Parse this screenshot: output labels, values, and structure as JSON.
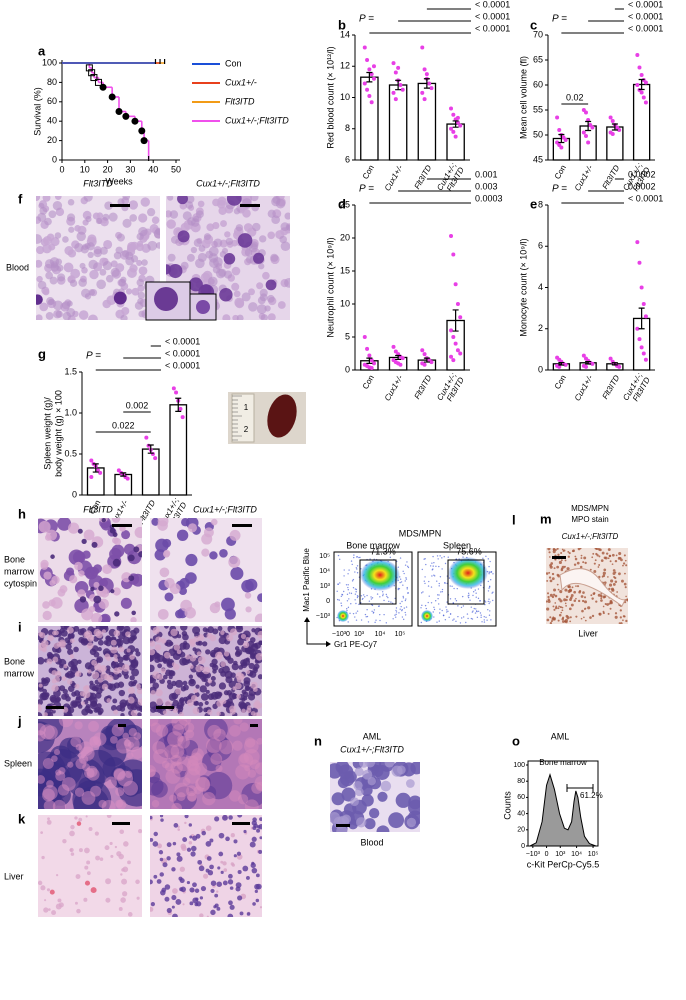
{
  "chart_data": [
    {
      "panel": "a",
      "type": "line",
      "step": true,
      "ylabel": "Survival (%)",
      "xlabel": "Weeks",
      "xlim": [
        0,
        50
      ],
      "xticks": [
        0,
        10,
        20,
        30,
        40,
        50
      ],
      "ylim": [
        0,
        100
      ],
      "yticks": [
        0,
        20,
        40,
        60,
        80,
        100
      ],
      "series": [
        {
          "name": "Con",
          "color": "#1a4fd8",
          "x": [
            0,
            41
          ],
          "values": [
            100,
            100
          ]
        },
        {
          "name": "Cux1+/-",
          "color": "#e8401c",
          "x": [
            0,
            43
          ],
          "values": [
            100,
            100
          ]
        },
        {
          "name": "Flt3ITD",
          "color": "#f29b16",
          "x": [
            0,
            45
          ],
          "values": [
            100,
            100
          ]
        },
        {
          "name": "Cux1+/-;Flt3ITD",
          "color": "#f050ec",
          "x": [
            0,
            12,
            13,
            14,
            16,
            18,
            22,
            25,
            28,
            32,
            35,
            36,
            38
          ],
          "values": [
            100,
            95,
            90,
            85,
            80,
            75,
            65,
            50,
            45,
            40,
            30,
            20,
            0
          ]
        }
      ]
    },
    {
      "panel": "b",
      "type": "bar",
      "ylabel": "Red blood count (× 10¹²/l)",
      "ylim": [
        6,
        14
      ],
      "yticks": [
        6,
        8,
        10,
        12,
        14
      ],
      "categories": [
        "Con",
        "Cux1+/-",
        "Flt3ITD",
        "Cux1+/-;Flt3ITD"
      ],
      "color": "#000000",
      "point_color": "#e83fe6",
      "values": [
        11.3,
        10.8,
        10.9,
        8.3
      ],
      "errors": [
        0.3,
        0.3,
        0.3,
        0.2
      ],
      "points": [
        [
          13.2,
          12.4,
          11.8,
          11.5,
          11.2,
          10.9,
          10.5,
          10.1,
          9.7,
          12.0
        ],
        [
          12.2,
          11.6,
          11.1,
          10.8,
          10.5,
          10.3,
          9.9,
          11.9
        ],
        [
          13.2,
          11.8,
          11.2,
          10.9,
          10.6,
          10.3,
          9.9,
          11.5
        ],
        [
          9.3,
          8.9,
          8.6,
          8.4,
          8.2,
          8.0,
          7.8,
          7.5,
          8.7
        ]
      ],
      "p_label": "P =",
      "comparisons": [
        "< 0.0001",
        "< 0.0001",
        "< 0.0001"
      ]
    },
    {
      "panel": "c",
      "type": "bar",
      "ylabel": "Mean cell volume (fl)",
      "ylim": [
        45,
        70
      ],
      "yticks": [
        45,
        50,
        55,
        60,
        65,
        70
      ],
      "categories": [
        "Con",
        "Cux1+/-",
        "Flt3ITD",
        "Cux1+/-;Flt3ITD"
      ],
      "color": "#000000",
      "point_color": "#e83fe6",
      "values": [
        49.3,
        51.8,
        51.6,
        60.1
      ],
      "errors": [
        0.8,
        0.9,
        0.6,
        1.0
      ],
      "points": [
        [
          53.5,
          51,
          50,
          49.5,
          49,
          48.5,
          48,
          47.5
        ],
        [
          55,
          54.5,
          53,
          52,
          51.5,
          50.5,
          49.8,
          48.5
        ],
        [
          53.5,
          52.8,
          52,
          51.5,
          51,
          50.5,
          50.2
        ],
        [
          66,
          63.5,
          62,
          61,
          60.5,
          60,
          59,
          58.5,
          57.5,
          56.5
        ]
      ],
      "p_label": "P =",
      "comparisons": [
        "< 0.0001",
        "< 0.0001",
        "< 0.0001",
        "0.02"
      ]
    },
    {
      "panel": "d",
      "type": "bar",
      "ylabel": "Neutrophil count (× 10⁹/l)",
      "ylim": [
        0,
        25
      ],
      "yticks": [
        0,
        5,
        10,
        15,
        20,
        25
      ],
      "categories": [
        "Con",
        "Cux1+/-",
        "Flt3ITD",
        "Cux1+/-;Flt3ITD"
      ],
      "color": "#000000",
      "point_color": "#e83fe6",
      "values": [
        1.4,
        1.9,
        1.5,
        7.5
      ],
      "errors": [
        0.4,
        0.3,
        0.3,
        1.6
      ],
      "points": [
        [
          5,
          3.2,
          2.2,
          1.5,
          1.0,
          0.8,
          0.6,
          0.4,
          0.3
        ],
        [
          3.5,
          2.8,
          2.4,
          2.0,
          1.8,
          1.5,
          1.2,
          1.0,
          0.8
        ],
        [
          3,
          2.4,
          1.8,
          1.5,
          1.2,
          1.0,
          0.8
        ],
        [
          20.3,
          17.5,
          13,
          10,
          8,
          6,
          5,
          4,
          3,
          2.5,
          2,
          1.5
        ]
      ],
      "p_label": "P =",
      "comparisons": [
        "0.001",
        "0.003",
        "0.0003"
      ]
    },
    {
      "panel": "e",
      "type": "bar",
      "ylabel": "Monocyte count (× 10⁹/l)",
      "ylim": [
        0,
        8
      ],
      "yticks": [
        0,
        2,
        4,
        6,
        8
      ],
      "categories": [
        "Con",
        "Cux1+/-",
        "Flt3ITD",
        "Cux1+/-;Flt3ITD"
      ],
      "color": "#000000",
      "point_color": "#e83fe6",
      "values": [
        0.3,
        0.35,
        0.3,
        2.5
      ],
      "errors": [
        0.06,
        0.06,
        0.05,
        0.5
      ],
      "points": [
        [
          0.6,
          0.5,
          0.4,
          0.3,
          0.25,
          0.2,
          0.15
        ],
        [
          0.7,
          0.55,
          0.45,
          0.35,
          0.3,
          0.2,
          0.15
        ],
        [
          0.55,
          0.4,
          0.3,
          0.2,
          0.15
        ],
        [
          6.2,
          5.2,
          4.0,
          3.2,
          2.6,
          2.0,
          1.5,
          1.1,
          0.8,
          0.5
        ]
      ],
      "p_label": "P =",
      "comparisons": [
        "0.0002",
        "0.0002",
        "< 0.0001"
      ]
    },
    {
      "panel": "g",
      "type": "bar",
      "ylabel": "Spleen weight (g)/",
      "ylabel2": "body weight (g) × 100",
      "ylim": [
        0,
        1.5
      ],
      "yticks": [
        0,
        0.5,
        {
          "value": 1,
          "label": "1.0"
        },
        1.5
      ],
      "categories": [
        "Con",
        "Cux1+/-",
        "Flt3ITD",
        "Cux1+/-;Flt3ITD"
      ],
      "color": "#000000",
      "point_color": "#e83fe6",
      "values": [
        0.33,
        0.25,
        0.56,
        1.1
      ],
      "errors": [
        0.05,
        0.02,
        0.05,
        0.08
      ],
      "points": [
        [
          0.42,
          0.38,
          0.35,
          0.3,
          0.27,
          0.22
        ],
        [
          0.3,
          0.27,
          0.25,
          0.22,
          0.2
        ],
        [
          0.7,
          0.6,
          0.55,
          0.5,
          0.45
        ],
        [
          1.3,
          1.25,
          1.15,
          1.05,
          0.95
        ]
      ],
      "p_label": "P =",
      "comparisons": [
        "< 0.0001",
        "< 0.0001",
        "< 0.0001",
        "0.022",
        "0.002"
      ],
      "photo_ruler": [
        "1",
        "2"
      ]
    },
    {
      "panel": "o",
      "type": "area",
      "heading": "AML",
      "title": "Bone marrow",
      "annotation": "61.2%",
      "ylabel": "Counts",
      "xlabel": "c-Kit PerCp-Cy5.5",
      "xlim": [
        -2000,
        200000
      ],
      "xticks": [
        {
          "value": -1000,
          "label": "−10³"
        },
        0,
        {
          "value": 1000,
          "label": "10³"
        },
        {
          "value": 10000,
          "label": "10⁴"
        },
        {
          "value": 100000,
          "label": "10⁵"
        }
      ],
      "ylim": [
        0,
        100
      ],
      "yticks": [
        0,
        20,
        40,
        60,
        80,
        100
      ],
      "color": "#9a9a9a",
      "x": [
        -1500,
        -600,
        -200,
        0,
        150,
        400,
        900,
        1800,
        3000,
        5000,
        7000,
        9000,
        12000,
        18000,
        30000,
        60000,
        150000
      ],
      "values": [
        0,
        4,
        30,
        75,
        88,
        70,
        40,
        22,
        20,
        30,
        55,
        68,
        60,
        35,
        12,
        3,
        0
      ]
    }
  ],
  "panels": {
    "f": {
      "label": "f",
      "columns": [
        "Flt3ITD",
        "Cux1+/-;Flt3ITD"
      ],
      "row": "Blood"
    },
    "h": {
      "label": "h",
      "columns": [
        "Flt3ITD",
        "Cux1+/-;Flt3ITD"
      ],
      "row": [
        "Bone",
        "marrow",
        "cytospin"
      ]
    },
    "i": {
      "label": "i",
      "row": [
        "Bone",
        "marrow"
      ]
    },
    "j": {
      "label": "j",
      "row": "Spleen"
    },
    "k": {
      "label": "k",
      "row": "Liver"
    },
    "l": {
      "label": "l",
      "title": "MDS/MPN",
      "plots": [
        "Bone marrow",
        "Spleen"
      ],
      "gates": [
        "71.3%",
        "75.6%"
      ],
      "ylabel": "Mac1 Pacific Blue",
      "xlabel": "Gr1 PE-Cy7",
      "yticks": [
        "10⁵",
        "10⁴",
        "10³",
        "0",
        "−10³"
      ],
      "xticks": [
        "−10³",
        "0",
        "10³",
        "10⁴",
        "10⁵"
      ]
    },
    "m": {
      "label": "m",
      "title": [
        "MDS/MPN",
        "MPO stain"
      ],
      "genotype": "Cux1+/-;Flt3ITD",
      "caption": "Liver"
    },
    "n": {
      "label": "n",
      "title": "AML",
      "genotype": "Cux1+/-;Flt3ITD",
      "caption": "Blood"
    }
  }
}
